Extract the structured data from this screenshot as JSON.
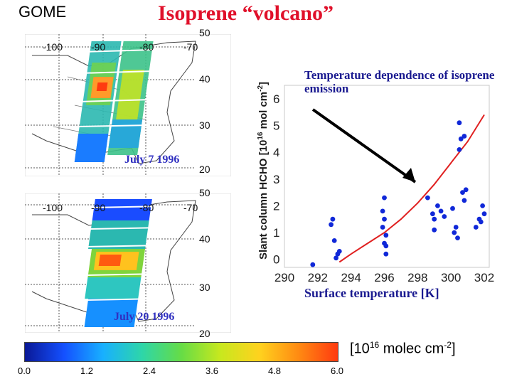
{
  "header": {
    "instrument": "GOME",
    "title": "Isoprene “volcano”"
  },
  "maps": [
    {
      "date": "July 7 1996",
      "lon_ticks": [
        "-100",
        "-90",
        "-80",
        "-70"
      ],
      "lat_ticks": [
        "50",
        "40",
        "30",
        "20"
      ]
    },
    {
      "date": "July 20 1996",
      "lon_ticks": [
        "-100",
        "-90",
        "-80",
        "-70"
      ],
      "lat_ticks": [
        "50",
        "40",
        "30",
        "20"
      ]
    }
  ],
  "colorbar": {
    "ticks": [
      "0.0",
      "1.2",
      "2.4",
      "3.6",
      "4.8",
      "6.0"
    ],
    "unit_base": "[10",
    "unit_exp": "16",
    "unit_mid": " molec cm",
    "unit_exp2": "-2",
    "unit_end": "]",
    "colors": [
      "#0a1896",
      "#1450ff",
      "#18b0ff",
      "#2ed6a8",
      "#66dc46",
      "#c8e81e",
      "#ffd21e",
      "#ff8a12",
      "#ff3a10"
    ]
  },
  "chart_data": {
    "type": "scatter",
    "title": "Temperature dependence of isoprene emission",
    "xlabel": "Surface temperature [K]",
    "ylabel": "Slant column HCHO [10^16 mol cm^-2]",
    "xlim": [
      290,
      302.3
    ],
    "ylim": [
      -0.3,
      6.5
    ],
    "x_ticks": [
      "290",
      "292",
      "294",
      "296",
      "298",
      "300",
      "302"
    ],
    "y_ticks": [
      "0",
      "1",
      "2",
      "3",
      "4",
      "5",
      "6"
    ],
    "grid": false,
    "point_color": "#1028d8",
    "fit_color": "#e02020",
    "points": [
      {
        "x": 291.7,
        "y": -0.2
      },
      {
        "x": 292.8,
        "y": 1.3
      },
      {
        "x": 292.9,
        "y": 1.5
      },
      {
        "x": 293.0,
        "y": 0.7
      },
      {
        "x": 293.1,
        "y": 0.05
      },
      {
        "x": 293.2,
        "y": 0.2
      },
      {
        "x": 293.3,
        "y": 0.3
      },
      {
        "x": 295.9,
        "y": 1.8
      },
      {
        "x": 295.9,
        "y": 1.2
      },
      {
        "x": 296.0,
        "y": 2.3
      },
      {
        "x": 296.0,
        "y": 1.5
      },
      {
        "x": 296.0,
        "y": 0.6
      },
      {
        "x": 296.1,
        "y": 0.2
      },
      {
        "x": 296.1,
        "y": 0.9
      },
      {
        "x": 296.1,
        "y": 0.5
      },
      {
        "x": 298.6,
        "y": 2.3
      },
      {
        "x": 298.9,
        "y": 1.7
      },
      {
        "x": 299.0,
        "y": 1.5
      },
      {
        "x": 299.0,
        "y": 1.1
      },
      {
        "x": 299.2,
        "y": 2.0
      },
      {
        "x": 299.4,
        "y": 1.8
      },
      {
        "x": 299.6,
        "y": 1.6
      },
      {
        "x": 300.1,
        "y": 1.9
      },
      {
        "x": 300.2,
        "y": 1.0
      },
      {
        "x": 300.3,
        "y": 1.2
      },
      {
        "x": 300.4,
        "y": 0.8
      },
      {
        "x": 300.5,
        "y": 5.1
      },
      {
        "x": 300.5,
        "y": 4.1
      },
      {
        "x": 300.6,
        "y": 4.5
      },
      {
        "x": 300.7,
        "y": 2.5
      },
      {
        "x": 300.8,
        "y": 4.6
      },
      {
        "x": 300.8,
        "y": 2.2
      },
      {
        "x": 300.9,
        "y": 2.6
      },
      {
        "x": 301.5,
        "y": 1.2
      },
      {
        "x": 301.7,
        "y": 1.5
      },
      {
        "x": 301.8,
        "y": 1.4
      },
      {
        "x": 301.9,
        "y": 2.0
      },
      {
        "x": 302.0,
        "y": 1.7
      }
    ],
    "fit_curve": [
      {
        "x": 293.3,
        "y": -0.1
      },
      {
        "x": 294.0,
        "y": 0.2
      },
      {
        "x": 295.0,
        "y": 0.6
      },
      {
        "x": 296.0,
        "y": 1.0
      },
      {
        "x": 297.0,
        "y": 1.5
      },
      {
        "x": 298.0,
        "y": 2.1
      },
      {
        "x": 299.0,
        "y": 2.8
      },
      {
        "x": 300.0,
        "y": 3.6
      },
      {
        "x": 301.0,
        "y": 4.4
      },
      {
        "x": 302.0,
        "y": 5.4
      }
    ]
  }
}
